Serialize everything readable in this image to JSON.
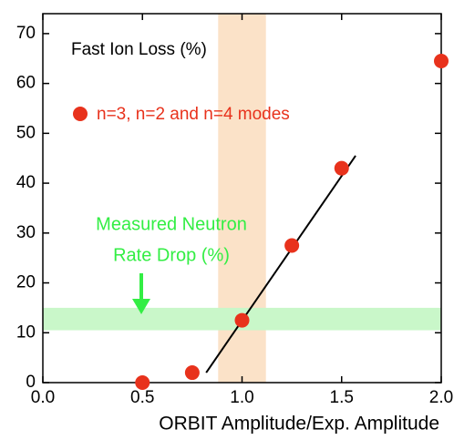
{
  "chart_data": {
    "type": "scatter",
    "x_label": "ORBIT Amplitude/Exp. Amplitude",
    "annotations": [
      "Fast Ion Loss (%)",
      "Measured Neutron",
      "Rate Drop (%)"
    ],
    "annotation_colors": [
      "#000000",
      "#33ee44",
      "#33ee44"
    ],
    "series": [
      {
        "name": "n=3, n=2 and n=4 modes",
        "color": "#e8321c",
        "x": [
          0.5,
          0.75,
          1.0,
          1.25,
          1.5,
          2.0
        ],
        "values": [
          0,
          2,
          12.5,
          27.5,
          43,
          64.5
        ]
      }
    ],
    "fit_line": {
      "x": [
        0.82,
        1.57
      ],
      "values": [
        2,
        45.5
      ],
      "color": "#000000"
    },
    "band_x": {
      "range": [
        0.88,
        1.12
      ],
      "color": "#fbe2c8"
    },
    "band_y": {
      "range": [
        10.5,
        15
      ],
      "color": "#c9f7c9"
    },
    "xlim": [
      0,
      2
    ],
    "ylim": [
      0,
      74
    ],
    "xticks": [
      {
        "value": 0,
        "label": "0.0"
      },
      0.5,
      {
        "value": 1,
        "label": "1.0"
      },
      1.5,
      {
        "value": 2,
        "label": "2.0"
      }
    ],
    "yticks": [
      0,
      10,
      20,
      30,
      40,
      50,
      60,
      70
    ]
  }
}
